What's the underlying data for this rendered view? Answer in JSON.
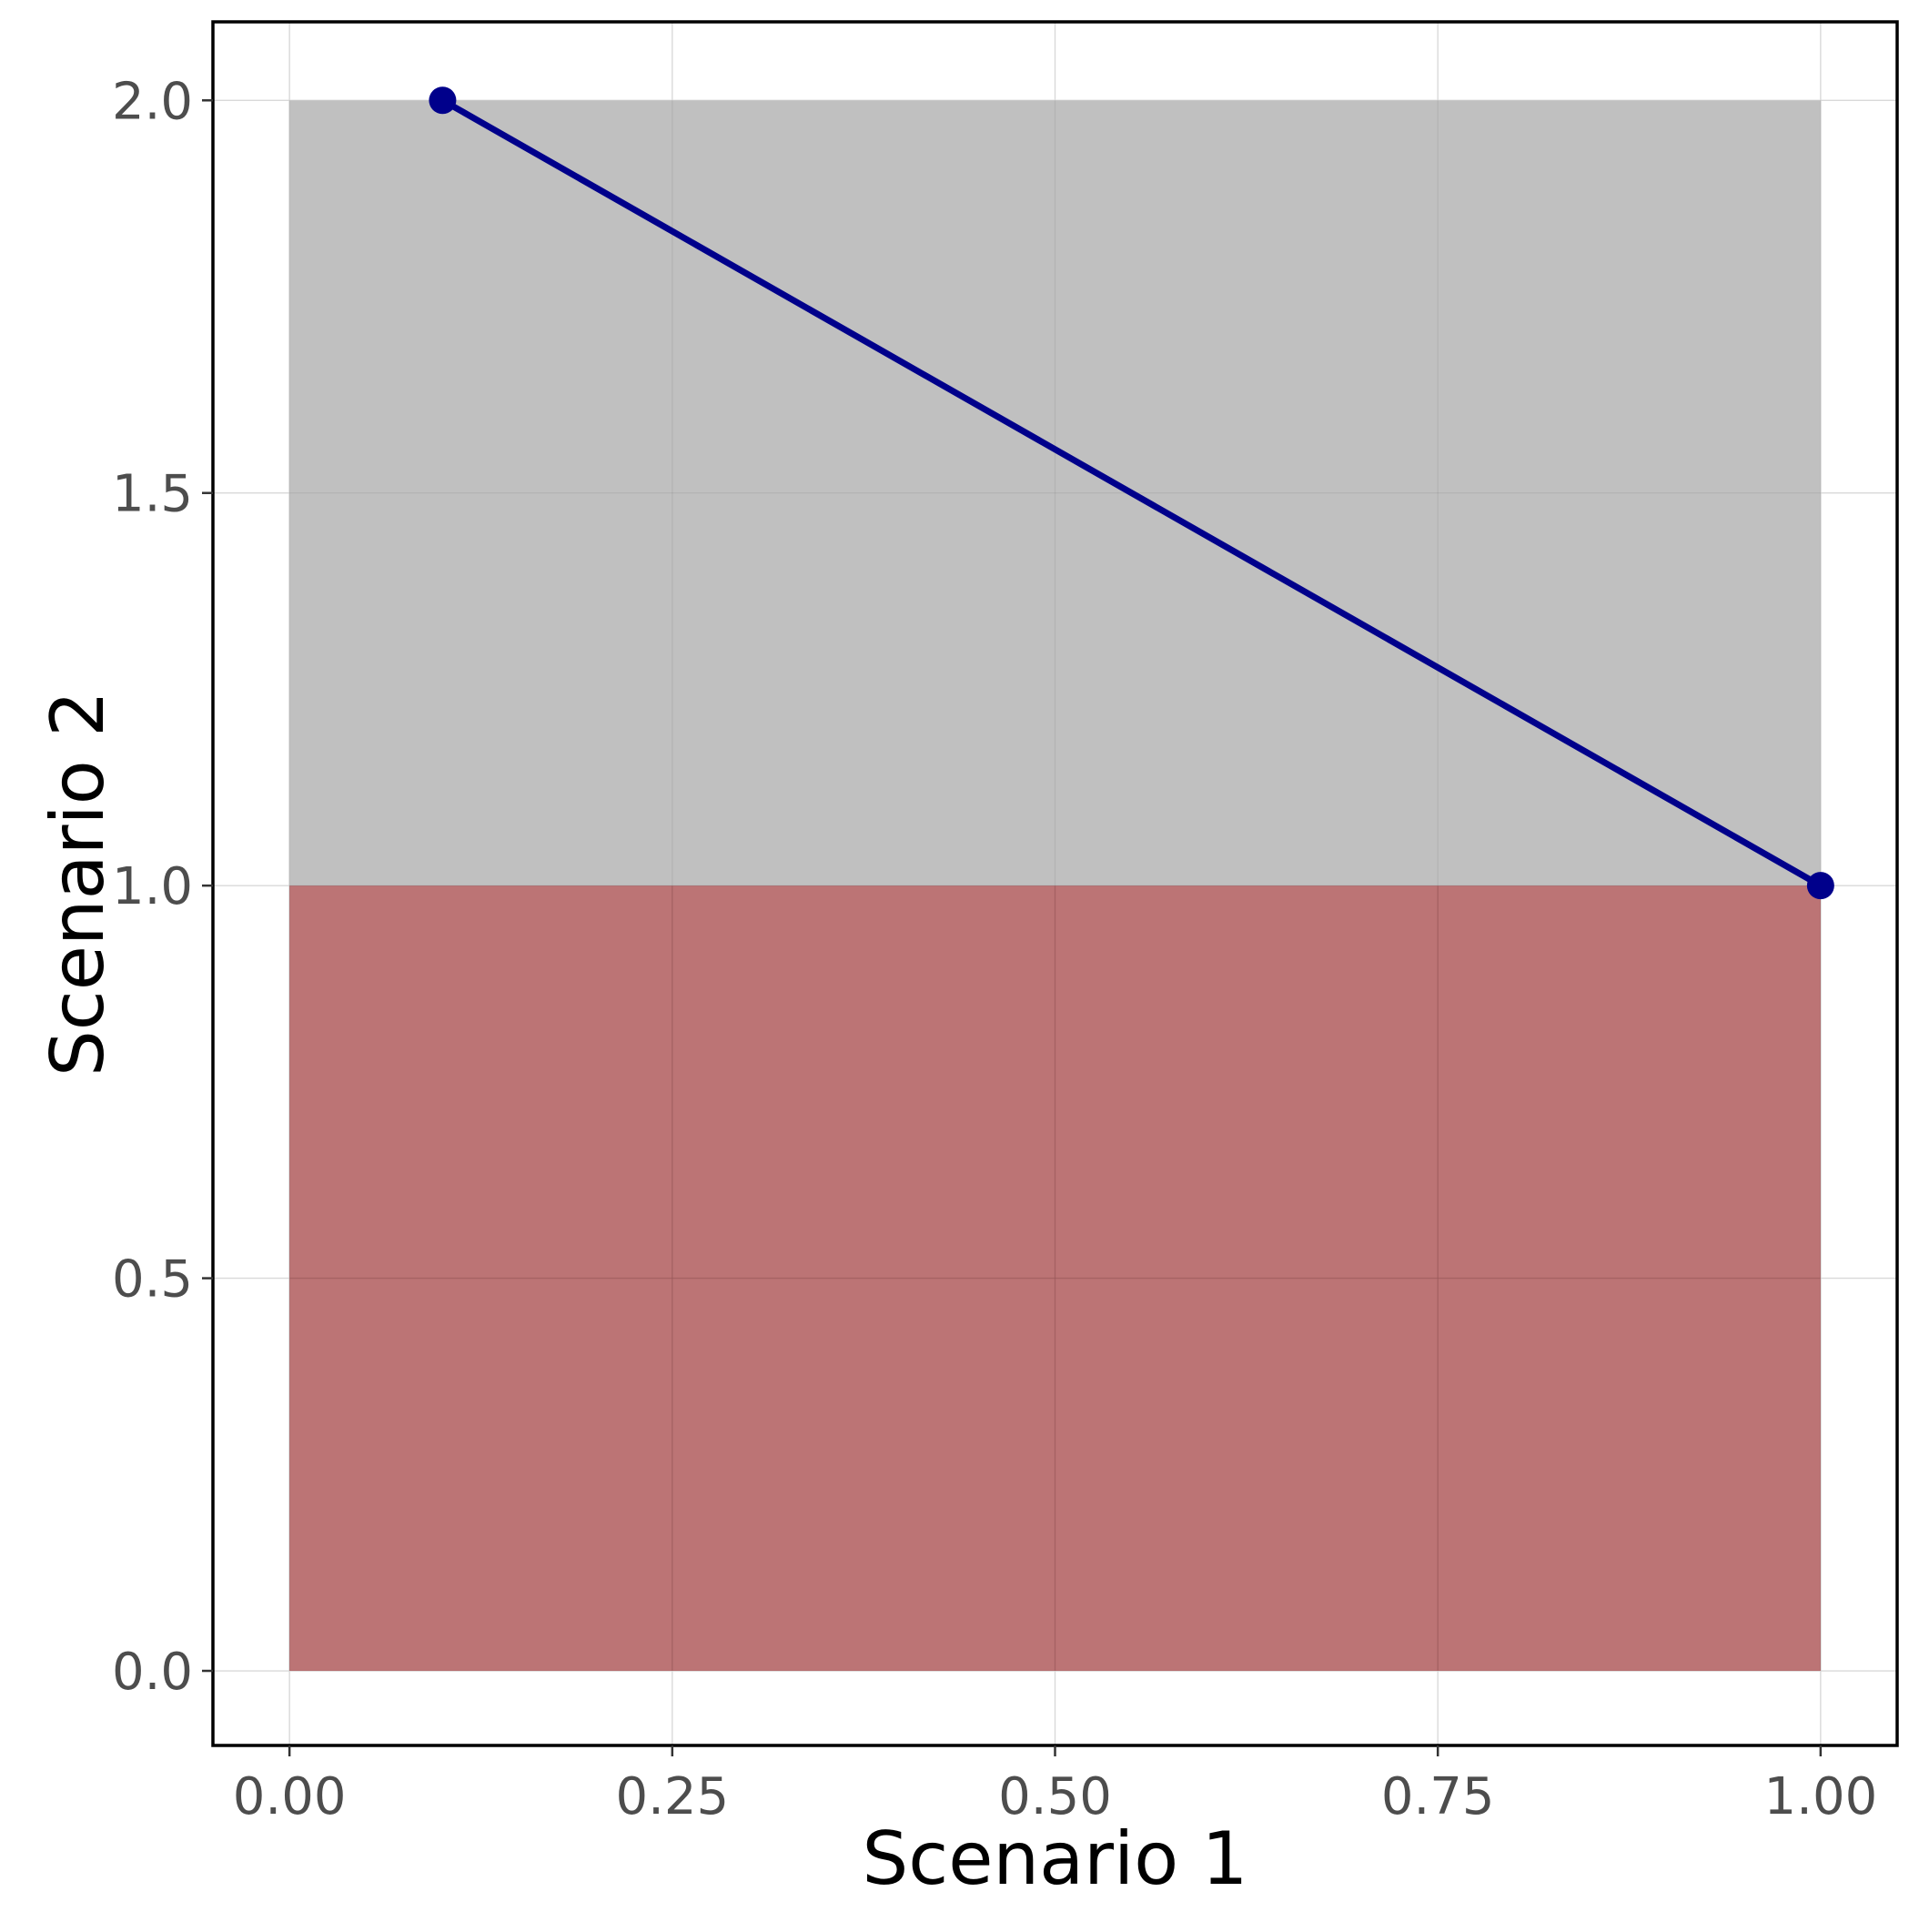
{
  "chart_data": {
    "type": "area",
    "xlabel": "Scenario 1",
    "ylabel": "Scenario 2",
    "xlim": [
      -0.05,
      1.05
    ],
    "ylim": [
      -0.095,
      2.1
    ],
    "x_ticks": [
      0.0,
      0.25,
      0.5,
      0.75,
      1.0
    ],
    "x_tick_labels": [
      "0.00",
      "0.25",
      "0.50",
      "0.75",
      "1.00"
    ],
    "y_ticks": [
      0.0,
      0.5,
      1.0,
      1.5,
      2.0
    ],
    "y_tick_labels": [
      "0.0",
      "0.5",
      "1.0",
      "1.5",
      "2.0"
    ],
    "grid": true,
    "regions": [
      {
        "x": [
          0.0,
          1.0
        ],
        "y_low": 1.0,
        "y_high": 2.0,
        "color": "#c0c0c0"
      },
      {
        "x": [
          0.0,
          1.0
        ],
        "y_low": 0.0,
        "y_high": 1.0,
        "color": "#a0393b"
      }
    ],
    "series": [
      {
        "x": [
          0.1,
          1.0
        ],
        "y": [
          2.0,
          1.0
        ],
        "color": "#00008b"
      }
    ]
  }
}
